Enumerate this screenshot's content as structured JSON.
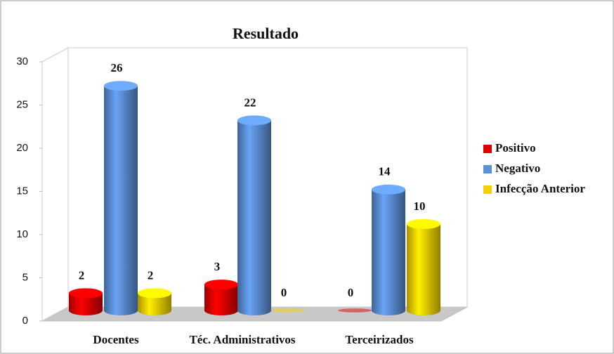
{
  "chart_data": {
    "type": "bar3d",
    "title": "Resultado",
    "categories": [
      "Docentes",
      "Téc. Administrativos",
      "Terceirizados"
    ],
    "series": [
      {
        "name": "Positivo",
        "color": "#e00000",
        "values": [
          2,
          3,
          0
        ]
      },
      {
        "name": "Negativo",
        "color": "#5b8fd6",
        "values": [
          26,
          22,
          14
        ]
      },
      {
        "name": "Infecção Anterior",
        "color": "#f5d000",
        "values": [
          2,
          0,
          10
        ]
      }
    ],
    "ylim": [
      0,
      30
    ],
    "yticks": [
      0,
      5,
      10,
      15,
      20,
      25,
      30
    ],
    "legend": "right"
  }
}
